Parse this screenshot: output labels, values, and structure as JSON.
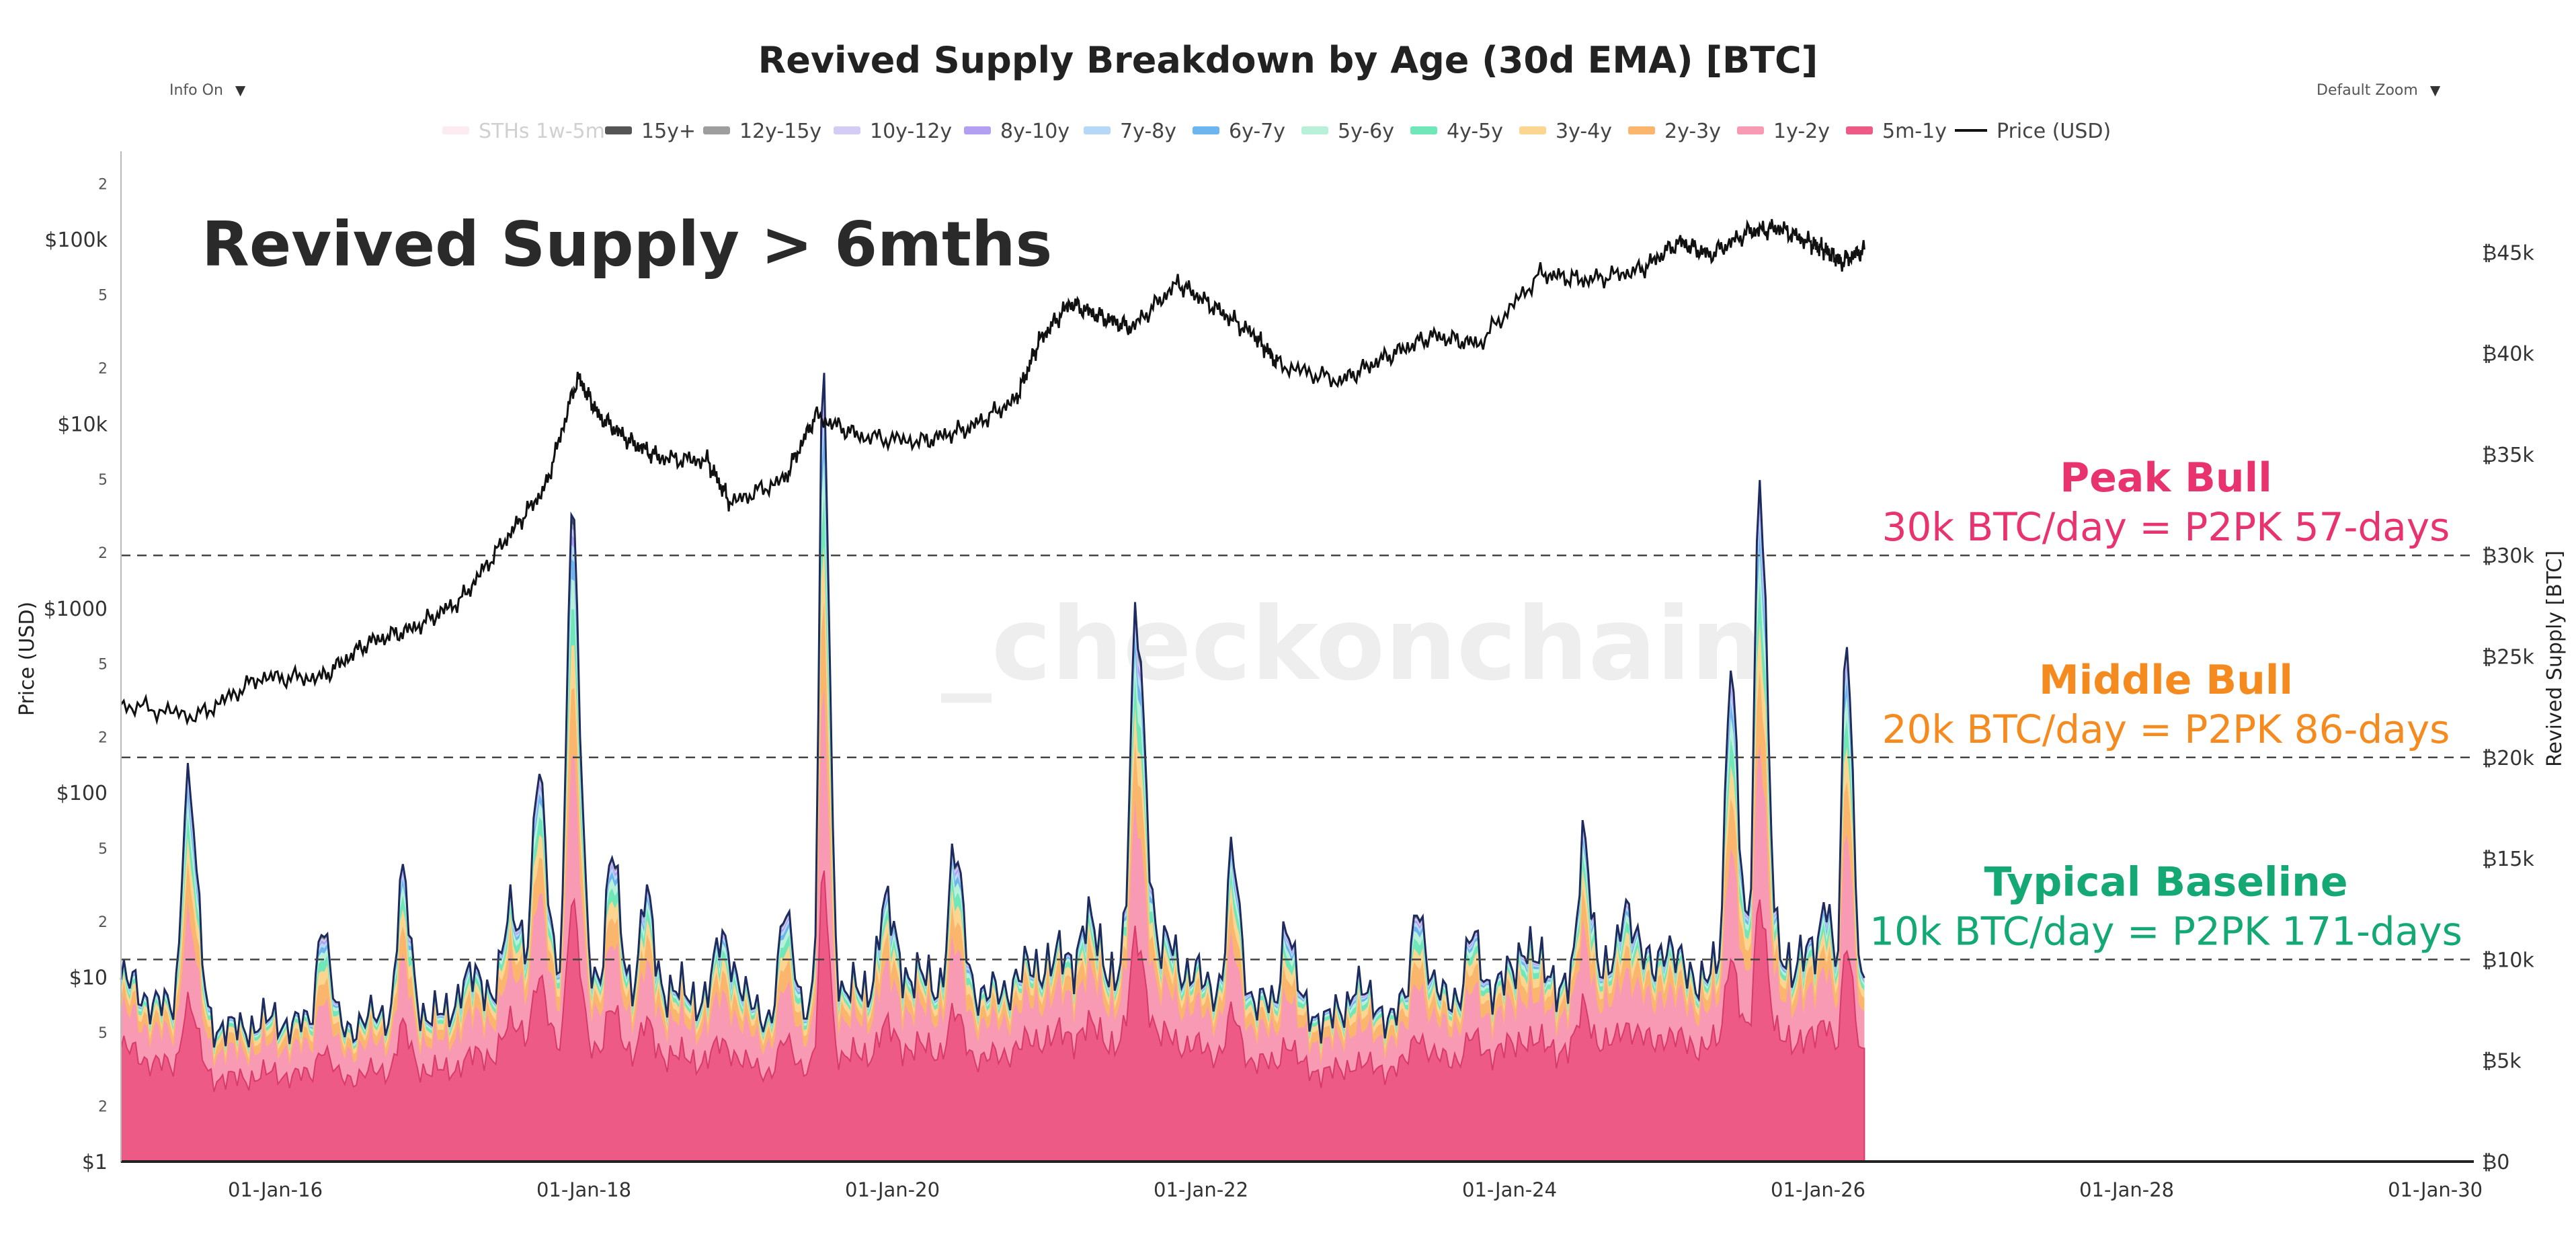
{
  "controls": {
    "info_label": "Info On",
    "zoom_label": "Default Zoom",
    "arrow": "▼"
  },
  "watermark": "_checkonchain",
  "chart_data": {
    "type": "area",
    "title": "Revived Supply Breakdown by Age (30d EMA) [BTC]",
    "subtitle": "Revived Supply > 6mths",
    "ylabel_left": "Price (USD)",
    "ylabel_right": "Revived Supply [BTC]",
    "x_ticks": [
      "01-Jan-16",
      "01-Jan-18",
      "01-Jan-20",
      "01-Jan-22",
      "01-Jan-24",
      "01-Jan-26",
      "01-Jan-28",
      "01-Jan-30"
    ],
    "x_range": [
      2015.0,
      2030.25
    ],
    "data_end": 2026.3,
    "y_right": {
      "range": [
        0,
        50000
      ],
      "ticks": [
        0,
        5000,
        10000,
        15000,
        20000,
        25000,
        30000,
        35000,
        40000,
        45000
      ],
      "labels": [
        "₿0",
        "₿5k",
        "₿10k",
        "₿15k",
        "₿20k",
        "₿25k",
        "₿30k",
        "₿35k",
        "₿40k",
        "₿45k"
      ]
    },
    "y_left": {
      "scale": "log",
      "range": [
        1,
        300000
      ],
      "major": [
        1,
        10,
        100,
        1000,
        10000,
        100000
      ],
      "major_labels": [
        "$1",
        "$10",
        "$100",
        "$1000",
        "$10k",
        "$100k"
      ],
      "minor": [
        2,
        5,
        20,
        50,
        200,
        500,
        2000,
        5000,
        20000,
        50000,
        200000
      ],
      "minor_labels": [
        "2",
        "5",
        "2",
        "5",
        "2",
        "5",
        "2",
        "5",
        "2",
        "5",
        "2"
      ]
    },
    "legend": [
      {
        "name": "STHs 1w-5m",
        "color": "#fadbe4",
        "faded": true
      },
      {
        "name": "15y+",
        "color": "#555555"
      },
      {
        "name": "12y-15y",
        "color": "#9e9e9e"
      },
      {
        "name": "10y-12y",
        "color": "#d5ccf5"
      },
      {
        "name": "8y-10y",
        "color": "#b39ff2"
      },
      {
        "name": "7y-8y",
        "color": "#b6d8f7"
      },
      {
        "name": "6y-7y",
        "color": "#6cb5ee"
      },
      {
        "name": "5y-6y",
        "color": "#b9f0da"
      },
      {
        "name": "4y-5y",
        "color": "#6fe7b8"
      },
      {
        "name": "3y-4y",
        "color": "#fcd591"
      },
      {
        "name": "2y-3y",
        "color": "#f9b66c"
      },
      {
        "name": "1y-2y",
        "color": "#f99ab5"
      },
      {
        "name": "5m-1y",
        "color": "#ee5a86"
      },
      {
        "name": "Price (USD)",
        "color": "#111111",
        "line": true
      }
    ],
    "reference_lines": [
      {
        "value": 30000,
        "title": "Peak Bull",
        "label": "30k BTC/day = P2PK 57-days",
        "color": "#e8336f"
      },
      {
        "value": 20000,
        "title": "Middle Bull",
        "label": "20k BTC/day = P2PK 86-days",
        "color": "#f58b1f"
      },
      {
        "value": 10000,
        "title": "Typical Baseline",
        "label": "10k BTC/day = P2PK 171-days",
        "color": "#13a874"
      }
    ],
    "price_series": {
      "x": [
        2015.0,
        2015.5,
        2015.9,
        2016.3,
        2016.6,
        2016.9,
        2017.2,
        2017.5,
        2017.75,
        2017.96,
        2018.1,
        2018.3,
        2018.5,
        2018.8,
        2018.95,
        2019.3,
        2019.5,
        2019.8,
        2020.2,
        2020.5,
        2020.8,
        2020.95,
        2021.15,
        2021.35,
        2021.55,
        2021.85,
        2022.1,
        2022.35,
        2022.5,
        2022.9,
        2023.2,
        2023.5,
        2023.8,
        2024.2,
        2024.5,
        2024.85,
        2025.1,
        2025.3,
        2025.55,
        2025.75,
        2025.95,
        2026.05,
        2026.15,
        2026.3
      ],
      "y": [
        300,
        260,
        420,
        420,
        650,
        780,
        1100,
        2400,
        4500,
        18000,
        11000,
        8000,
        6500,
        6300,
        3700,
        5000,
        11000,
        8500,
        8000,
        9500,
        13500,
        28000,
        45000,
        38000,
        33000,
        58000,
        42000,
        30000,
        21000,
        17000,
        23000,
        30000,
        27000,
        65000,
        60000,
        68000,
        97000,
        82000,
        110000,
        115000,
        95000,
        87000,
        75000,
        88000
      ]
    },
    "cohort_order": [
      "5m-1y",
      "1y-2y",
      "2y-3y",
      "3y-4y",
      "4y-5y",
      "5y-6y",
      "6y-7y",
      "7y-8y",
      "8y-10y",
      "10y-12y",
      "12y-15y",
      "15y+"
    ],
    "baseline": [
      [
        2015.0,
        9000
      ],
      [
        2015.4,
        7000
      ],
      [
        2015.7,
        6500
      ],
      [
        2016.0,
        7000
      ],
      [
        2016.4,
        6500
      ],
      [
        2016.8,
        7500
      ],
      [
        2017.2,
        7000
      ],
      [
        2017.6,
        10000
      ],
      [
        2018.2,
        9000
      ],
      [
        2018.8,
        8000
      ],
      [
        2019.3,
        7000
      ],
      [
        2019.8,
        8500
      ],
      [
        2020.2,
        9000
      ],
      [
        2020.6,
        8000
      ],
      [
        2021.0,
        10000
      ],
      [
        2021.5,
        9500
      ],
      [
        2022.0,
        9000
      ],
      [
        2022.5,
        7500
      ],
      [
        2023.0,
        7000
      ],
      [
        2023.5,
        8000
      ],
      [
        2024.0,
        9000
      ],
      [
        2024.5,
        9000
      ],
      [
        2025.0,
        9500
      ],
      [
        2025.5,
        9000
      ],
      [
        2026.0,
        9500
      ],
      [
        2026.3,
        8500
      ]
    ],
    "spikes": [
      {
        "x": 2015.43,
        "peak": 19000,
        "w": 0.06
      },
      {
        "x": 2016.3,
        "peak": 12000,
        "w": 0.05
      },
      {
        "x": 2016.82,
        "peak": 14000,
        "w": 0.05
      },
      {
        "x": 2017.22,
        "peak": 9000,
        "w": 0.08
      },
      {
        "x": 2017.52,
        "peak": 12000,
        "w": 0.07
      },
      {
        "x": 2017.7,
        "peak": 19000,
        "w": 0.05
      },
      {
        "x": 2017.92,
        "peak": 32000,
        "w": 0.05
      },
      {
        "x": 2018.18,
        "peak": 15000,
        "w": 0.05
      },
      {
        "x": 2018.4,
        "peak": 13000,
        "w": 0.05
      },
      {
        "x": 2018.9,
        "peak": 11000,
        "w": 0.08
      },
      {
        "x": 2019.3,
        "peak": 12000,
        "w": 0.06
      },
      {
        "x": 2019.55,
        "peak": 39000,
        "w": 0.04
      },
      {
        "x": 2019.95,
        "peak": 12500,
        "w": 0.07
      },
      {
        "x": 2020.4,
        "peak": 15000,
        "w": 0.06
      },
      {
        "x": 2020.85,
        "peak": 9000,
        "w": 0.06
      },
      {
        "x": 2021.25,
        "peak": 12000,
        "w": 0.06
      },
      {
        "x": 2021.58,
        "peak": 27000,
        "w": 0.06
      },
      {
        "x": 2021.8,
        "peak": 11000,
        "w": 0.05
      },
      {
        "x": 2022.2,
        "peak": 15000,
        "w": 0.05
      },
      {
        "x": 2022.55,
        "peak": 12000,
        "w": 0.05
      },
      {
        "x": 2023.0,
        "peak": 9000,
        "w": 0.06
      },
      {
        "x": 2023.4,
        "peak": 13000,
        "w": 0.05
      },
      {
        "x": 2023.75,
        "peak": 11000,
        "w": 0.05
      },
      {
        "x": 2024.1,
        "peak": 11000,
        "w": 0.06
      },
      {
        "x": 2024.48,
        "peak": 16000,
        "w": 0.05
      },
      {
        "x": 2024.75,
        "peak": 13000,
        "w": 0.06
      },
      {
        "x": 2025.0,
        "peak": 11000,
        "w": 0.05
      },
      {
        "x": 2025.43,
        "peak": 25000,
        "w": 0.05
      },
      {
        "x": 2025.62,
        "peak": 34000,
        "w": 0.05
      },
      {
        "x": 2025.9,
        "peak": 11000,
        "w": 0.05
      },
      {
        "x": 2026.05,
        "peak": 13000,
        "w": 0.04
      },
      {
        "x": 2026.18,
        "peak": 26000,
        "w": 0.04
      },
      {
        "x": 2026.27,
        "peak": 7000,
        "w": 0.04
      }
    ],
    "cohort_share_base": [
      0.62,
      0.2,
      0.07,
      0.04,
      0.025,
      0.015,
      0.008,
      0.005,
      0.004,
      0.003,
      0.002,
      0.003
    ],
    "cohort_share_spike": [
      0.3,
      0.24,
      0.12,
      0.08,
      0.07,
      0.06,
      0.04,
      0.03,
      0.02,
      0.015,
      0.01,
      0.015
    ]
  }
}
